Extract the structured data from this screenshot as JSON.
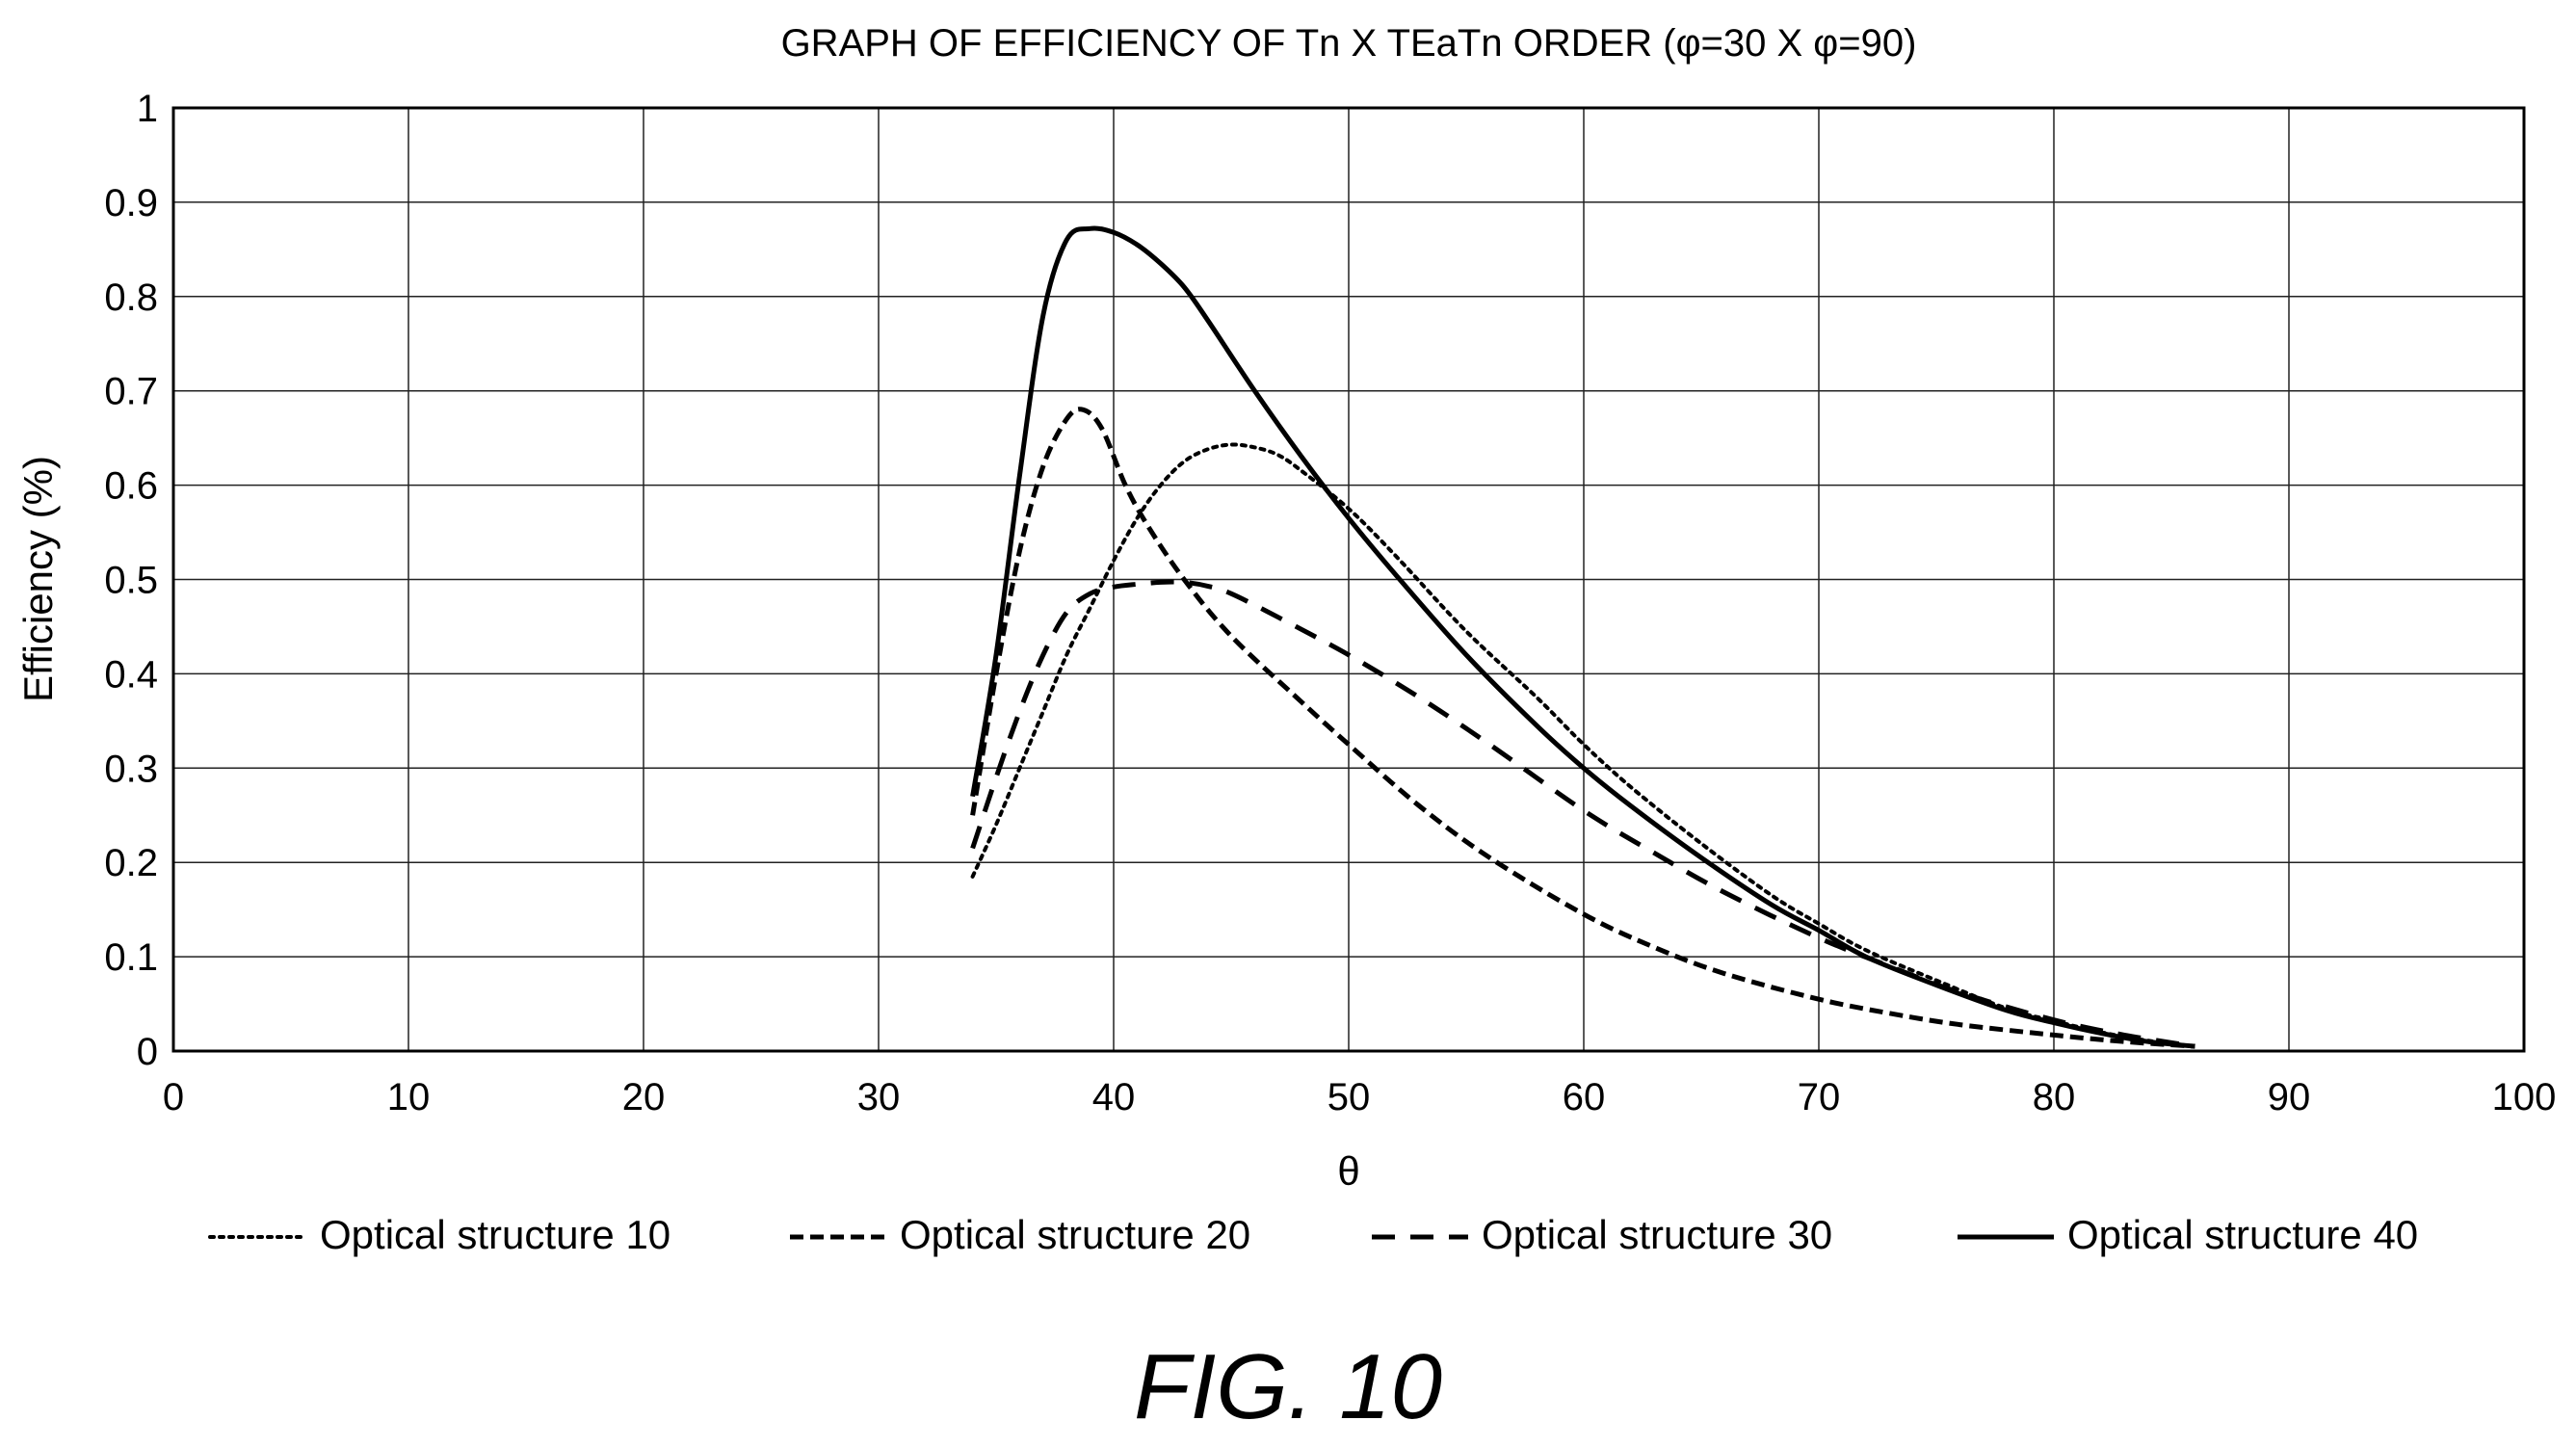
{
  "chart_data": {
    "type": "line",
    "title": "GRAPH OF EFFICIENCY OF Tn X TEaTn ORDER (φ=30 X φ=90)",
    "xlabel": "θ",
    "ylabel": "Efficiency (%)",
    "xlim": [
      0,
      100
    ],
    "ylim": [
      0,
      1
    ],
    "xticks": [
      0,
      10,
      20,
      30,
      40,
      50,
      60,
      70,
      80,
      90,
      100
    ],
    "xtick_labels": [
      "0",
      "10",
      "20",
      "30",
      "40",
      "50",
      "60",
      "70",
      "80",
      "90",
      "100"
    ],
    "yticks": [
      0,
      0.1,
      0.2,
      0.3,
      0.4,
      0.5,
      0.6,
      0.7,
      0.8,
      0.9,
      1
    ],
    "ytick_labels": [
      "0",
      "0.1",
      "0.2",
      "0.3",
      "0.4",
      "0.5",
      "0.6",
      "0.7",
      "0.8",
      "0.9",
      "1"
    ],
    "grid": true,
    "legend_position": "bottom",
    "series": [
      {
        "name": "Optical structure 10",
        "line_style": "dotted",
        "color": "#000000",
        "x": [
          34,
          35,
          36,
          37,
          38,
          39,
          40,
          41,
          42,
          43,
          44,
          45,
          46,
          47,
          48,
          50,
          52,
          55,
          58,
          60,
          62,
          65,
          68,
          70,
          72,
          75,
          78,
          80,
          82,
          84,
          86
        ],
        "y": [
          0.185,
          0.24,
          0.3,
          0.36,
          0.42,
          0.47,
          0.52,
          0.565,
          0.6,
          0.625,
          0.638,
          0.643,
          0.64,
          0.632,
          0.615,
          0.575,
          0.525,
          0.445,
          0.375,
          0.325,
          0.28,
          0.22,
          0.165,
          0.135,
          0.107,
          0.075,
          0.045,
          0.032,
          0.02,
          0.011,
          0.005
        ]
      },
      {
        "name": "Optical structure 20",
        "line_style": "short-dashed",
        "color": "#000000",
        "x": [
          34,
          35,
          36,
          37,
          38,
          38.7,
          39.5,
          40.5,
          41.5,
          43,
          45,
          48,
          50,
          53,
          56,
          60,
          63,
          66,
          70,
          73,
          76,
          80,
          83,
          86
        ],
        "y": [
          0.25,
          0.4,
          0.53,
          0.62,
          0.67,
          0.68,
          0.66,
          0.6,
          0.555,
          0.5,
          0.44,
          0.37,
          0.325,
          0.26,
          0.205,
          0.145,
          0.11,
          0.082,
          0.055,
          0.04,
          0.028,
          0.017,
          0.01,
          0.005
        ]
      },
      {
        "name": "Optical structure 30",
        "line_style": "dashed",
        "color": "#000000",
        "x": [
          34,
          35,
          36,
          37,
          38,
          39,
          40,
          41,
          42,
          43,
          44,
          45,
          47,
          50,
          53,
          56,
          60,
          63,
          66,
          70,
          73,
          76,
          80,
          83,
          86
        ],
        "y": [
          0.215,
          0.29,
          0.36,
          0.42,
          0.465,
          0.485,
          0.492,
          0.495,
          0.497,
          0.497,
          0.493,
          0.485,
          0.46,
          0.42,
          0.375,
          0.325,
          0.255,
          0.21,
          0.168,
          0.12,
          0.09,
          0.062,
          0.033,
          0.017,
          0.005
        ]
      },
      {
        "name": "Optical structure 40",
        "line_style": "solid",
        "color": "#000000",
        "x": [
          34,
          35,
          36,
          37,
          38,
          39,
          40,
          41,
          42,
          43,
          44,
          46,
          48,
          50,
          52,
          55,
          58,
          60,
          62,
          65,
          68,
          70,
          72,
          75,
          78,
          80,
          82,
          84,
          86
        ],
        "y": [
          0.27,
          0.42,
          0.61,
          0.78,
          0.86,
          0.872,
          0.868,
          0.855,
          0.835,
          0.81,
          0.775,
          0.7,
          0.63,
          0.565,
          0.505,
          0.42,
          0.345,
          0.3,
          0.26,
          0.205,
          0.155,
          0.128,
          0.1,
          0.07,
          0.043,
          0.03,
          0.019,
          0.01,
          0.005
        ]
      }
    ]
  },
  "figure_caption": "FIG. 10"
}
